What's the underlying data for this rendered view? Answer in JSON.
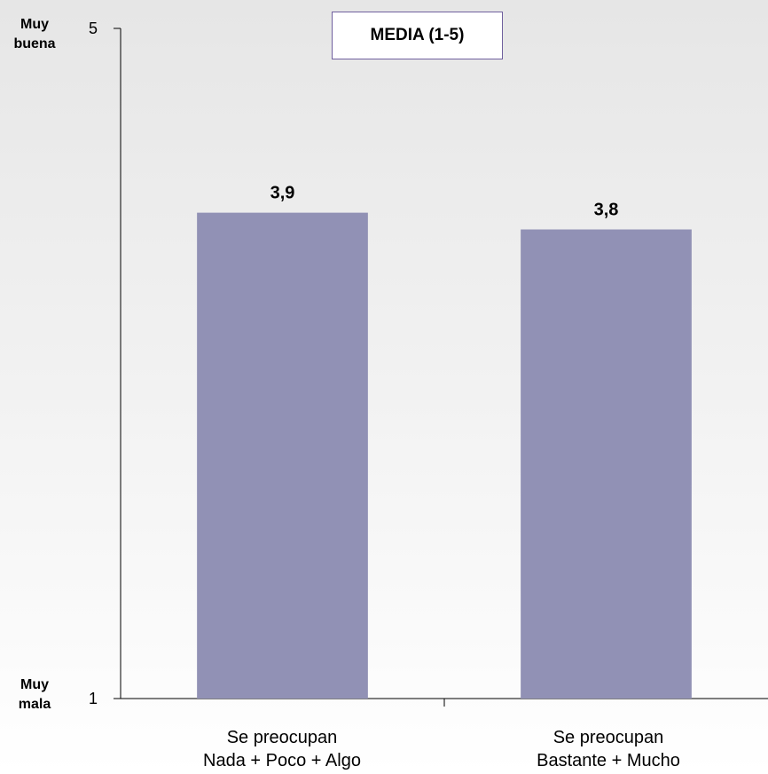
{
  "chart_data": {
    "type": "bar",
    "title": "MEDIA (1-5)",
    "categories": [
      [
        "Se preocupan",
        "Nada +  Poco + Algo"
      ],
      [
        "Se preocupan",
        "Bastante + Mucho"
      ]
    ],
    "values": [
      3.9,
      3.8
    ],
    "data_labels": [
      "3,9",
      "3,8"
    ],
    "ylim": [
      1,
      5
    ],
    "yticks": [
      "1",
      "5"
    ],
    "y_top_label": [
      "Muy",
      "buena"
    ],
    "y_bottom_label": [
      "Muy",
      "mala"
    ],
    "bar_color": "#9191b5",
    "grid": false
  }
}
